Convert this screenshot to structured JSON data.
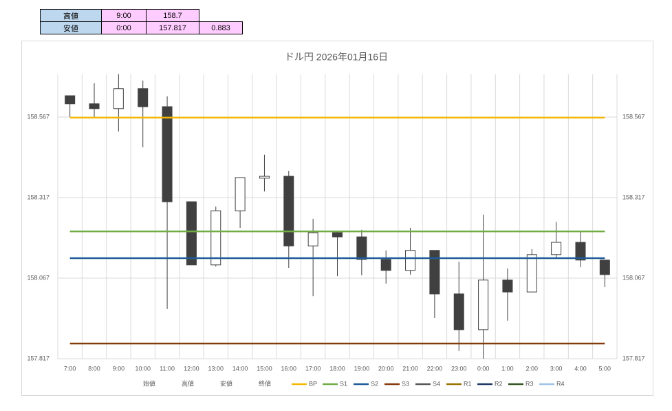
{
  "table": {
    "rows": [
      [
        "高値",
        "9:00",
        "158.7"
      ],
      [
        "安値",
        "0:00",
        "157.817",
        "0.883"
      ]
    ]
  },
  "chart_data": {
    "type": "candlestick",
    "title": "ドル円 2026年01月16日",
    "categories": [
      "7:00",
      "8:00",
      "9:00",
      "10:00",
      "11:00",
      "12:00",
      "13:00",
      "14:00",
      "15:00",
      "16:00",
      "17:00",
      "18:00",
      "19:00",
      "20:00",
      "21:00",
      "22:00",
      "23:00",
      "0:00",
      "1:00",
      "2:00",
      "3:00",
      "4:00",
      "5:00"
    ],
    "series": [
      {
        "name": "始値",
        "values": [
          158.633,
          158.608,
          158.593,
          158.655,
          158.599,
          158.304,
          158.108,
          158.276,
          158.377,
          158.383,
          158.167,
          158.208,
          158.195,
          158.125,
          158.091,
          158.153,
          158.018,
          157.907,
          158.061,
          158.024,
          158.14,
          158.178,
          158.123
        ]
      },
      {
        "name": "高値",
        "values": [
          158.633,
          158.672,
          158.7,
          158.68,
          158.631,
          158.304,
          158.289,
          158.379,
          158.45,
          158.4,
          158.251,
          158.212,
          158.217,
          158.153,
          158.223,
          158.153,
          158.118,
          158.264,
          158.097,
          158.157,
          158.242,
          158.21,
          158.123
        ]
      },
      {
        "name": "安値",
        "values": [
          158.567,
          158.567,
          158.522,
          158.473,
          157.971,
          158.108,
          158.103,
          158.223,
          158.336,
          158.099,
          158.011,
          158.073,
          158.076,
          158.05,
          158.078,
          157.943,
          157.841,
          157.817,
          157.935,
          158.024,
          158.131,
          158.101,
          158.039
        ]
      },
      {
        "name": "終値",
        "values": [
          158.608,
          158.593,
          158.655,
          158.599,
          158.304,
          158.108,
          158.276,
          158.379,
          158.383,
          158.167,
          158.208,
          158.195,
          158.125,
          158.091,
          158.153,
          158.018,
          157.907,
          158.061,
          158.024,
          158.14,
          158.178,
          158.123,
          158.078
        ]
      }
    ],
    "up_color": "#ffffff",
    "down_color": "#404040",
    "lines": [
      {
        "name": "BP",
        "color": "#f5b800",
        "value": 158.565
      },
      {
        "name": "S1",
        "color": "#70ad47",
        "value": 158.212
      },
      {
        "name": "S2",
        "color": "#1f5c99",
        "value": 158.129
      },
      {
        "name": "S3",
        "color": "#843c0c",
        "value": 157.864
      },
      {
        "name": "S4",
        "color": "#595959",
        "value": null
      },
      {
        "name": "R1",
        "color": "#997300",
        "value": null
      },
      {
        "name": "R2",
        "color": "#203864",
        "value": null
      },
      {
        "name": "R3",
        "color": "#375623",
        "value": null
      },
      {
        "name": "R4",
        "color": "#9dc3e6",
        "value": null
      }
    ],
    "ylim": [
      157.817,
      158.7
    ],
    "yticks": [
      157.817,
      158.067,
      158.317,
      158.567
    ],
    "grid": true
  }
}
